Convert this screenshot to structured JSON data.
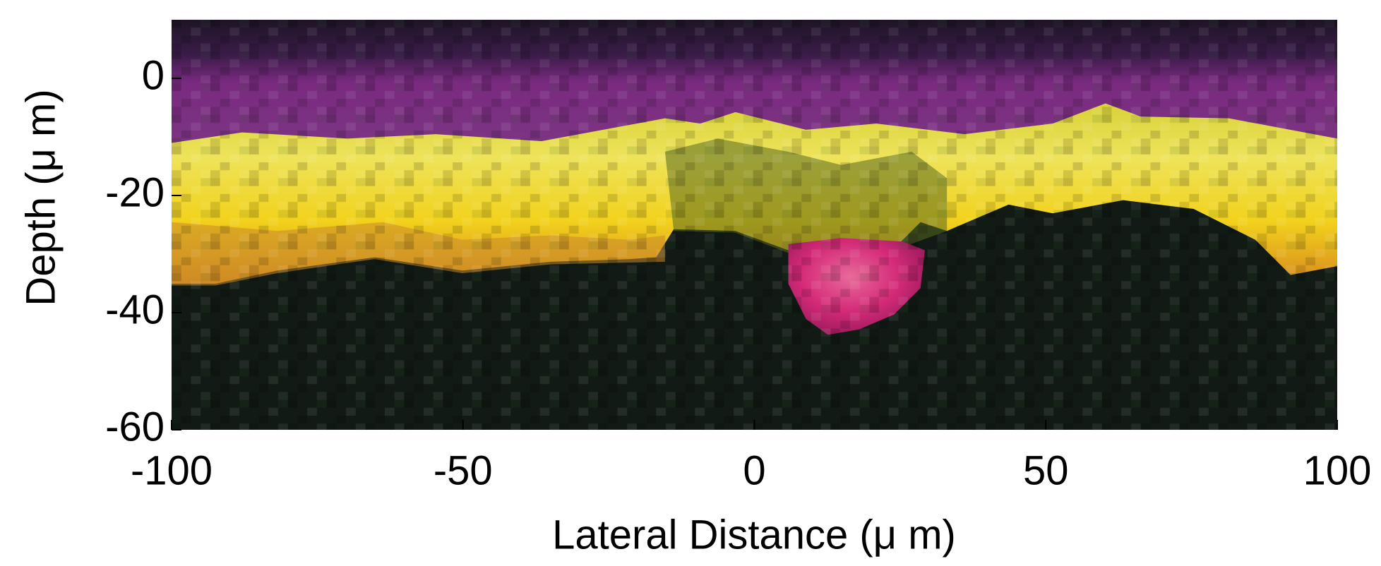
{
  "chart_data": {
    "type": "image",
    "xlabel": "Lateral Distance (μ m)",
    "ylabel": "Depth (μ m)",
    "xlim": [
      -100,
      100
    ],
    "xticks": [
      -100,
      -50,
      0,
      50,
      100
    ],
    "ylim": [
      -60,
      10
    ],
    "yticks": [
      -60,
      -40,
      -20,
      0
    ]
  }
}
